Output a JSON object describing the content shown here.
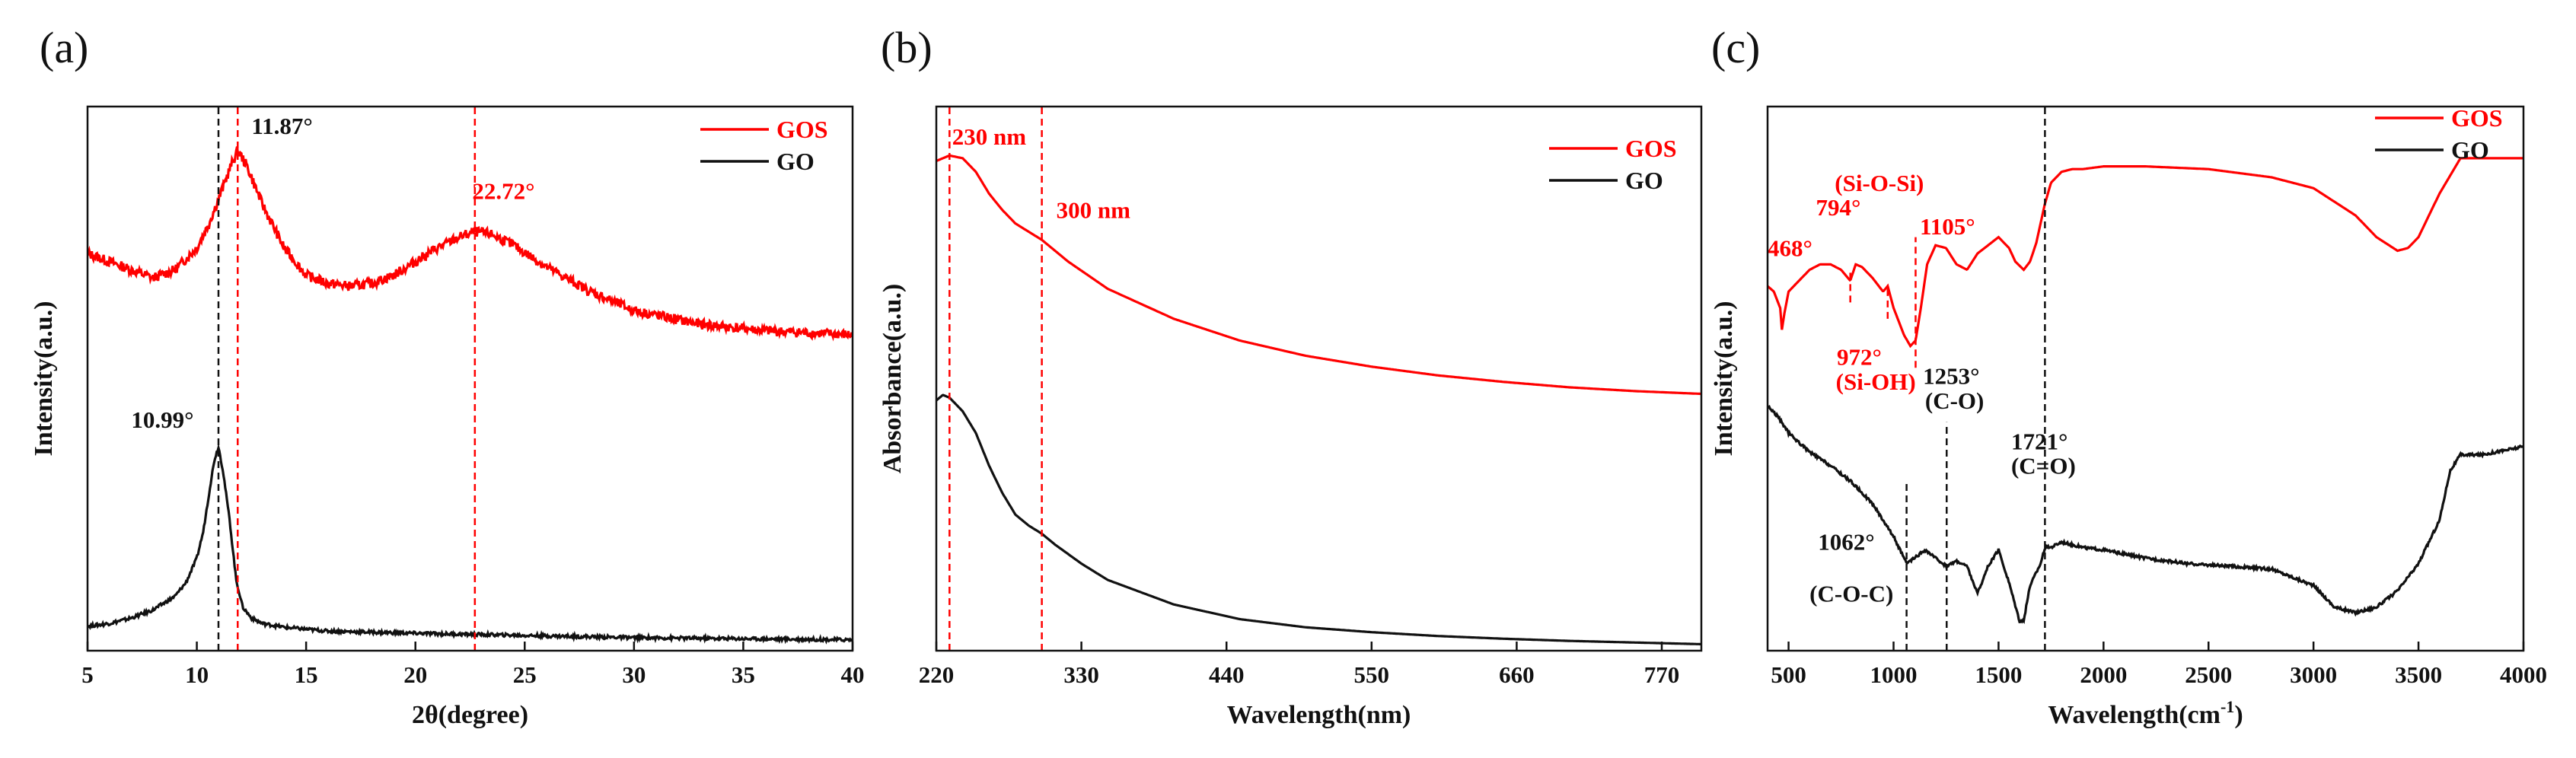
{
  "colors": {
    "red": "#ff0000",
    "black": "#111111"
  },
  "chart_data": [
    {
      "id": "a",
      "type": "line",
      "panel_label": "(a)",
      "xlabel": "2θ(degree)",
      "ylabel": "Intensity(a.u.)",
      "xlim": [
        5,
        40
      ],
      "ylim": [
        0,
        100
      ],
      "xticks": [
        5,
        10,
        15,
        20,
        25,
        30,
        35,
        40
      ],
      "legend": [
        {
          "name": "GOS",
          "color": "#ff0000"
        },
        {
          "name": "GO",
          "color": "#111111"
        }
      ],
      "series": [
        {
          "name": "GOS",
          "color": "#ff0000",
          "noise": 0.9,
          "x": [
            5,
            6,
            7,
            8,
            9,
            10,
            10.5,
            11,
            11.5,
            11.87,
            12.3,
            13,
            14,
            15,
            16,
            17,
            18,
            19,
            20,
            21,
            22,
            22.72,
            23.5,
            24.5,
            26,
            28,
            30,
            33,
            36,
            40
          ],
          "y": [
            73,
            71.5,
            70,
            68.5,
            70,
            74,
            78,
            83,
            88.5,
            92,
            89,
            82,
            74,
            69,
            67.5,
            67,
            67.5,
            69,
            71.5,
            74,
            76,
            77,
            76.5,
            74.5,
            70.5,
            66,
            62.5,
            60,
            58.8,
            58
          ]
        },
        {
          "name": "GO",
          "color": "#111111",
          "noise": 0.3,
          "x": [
            5,
            6,
            7,
            8,
            9,
            9.5,
            10,
            10.3,
            10.6,
            10.8,
            10.99,
            11.2,
            11.5,
            11.8,
            12.1,
            12.5,
            13,
            14,
            16,
            20,
            25,
            30,
            35,
            40
          ],
          "y": [
            4.5,
            5,
            6,
            7.5,
            10,
            12.5,
            17,
            22,
            30,
            35,
            37.5,
            33,
            24,
            13,
            8,
            6,
            5,
            4.3,
            3.6,
            3.2,
            2.8,
            2.4,
            2.2,
            2
          ]
        }
      ],
      "markers": [
        {
          "x": 10.99,
          "color": "#111111"
        },
        {
          "x": 11.87,
          "color": "#ff0000"
        },
        {
          "x": 22.72,
          "color": "#ff0000"
        }
      ],
      "annotations": [
        {
          "text": "11.87°",
          "x": 12.5,
          "y": 95,
          "color": "#111111"
        },
        {
          "text": "22.72°",
          "x": 22.6,
          "y": 83,
          "color": "#ff0000"
        },
        {
          "text": "10.99°",
          "x": 7.0,
          "y": 41,
          "color": "#111111"
        }
      ]
    },
    {
      "id": "b",
      "type": "line",
      "panel_label": "(b)",
      "xlabel": "Wavelength(nm)",
      "ylabel": "Absorbance(a.u.)",
      "xlim": [
        220,
        800
      ],
      "ylim": [
        0,
        100
      ],
      "xticks": [
        220,
        330,
        440,
        550,
        660,
        770
      ],
      "legend": [
        {
          "name": "GOS",
          "color": "#ff0000"
        },
        {
          "name": "GO",
          "color": "#111111"
        }
      ],
      "series": [
        {
          "name": "GOS",
          "color": "#ff0000",
          "noise": 0,
          "x": [
            220,
            230,
            240,
            250,
            260,
            270,
            280,
            290,
            300,
            320,
            350,
            400,
            450,
            500,
            550,
            600,
            650,
            700,
            750,
            800
          ],
          "y": [
            90,
            91,
            90.5,
            88,
            84,
            81,
            78.5,
            77,
            75.5,
            71.5,
            66.5,
            61,
            57,
            54.2,
            52.2,
            50.6,
            49.4,
            48.4,
            47.7,
            47.2
          ]
        },
        {
          "name": "GO",
          "color": "#111111",
          "noise": 0,
          "x": [
            220,
            225,
            230,
            240,
            250,
            260,
            270,
            280,
            290,
            300,
            310,
            330,
            350,
            400,
            450,
            500,
            550,
            600,
            650,
            700,
            750,
            800
          ],
          "y": [
            46,
            47,
            46.5,
            44,
            40,
            34,
            29,
            25,
            23,
            21.5,
            19.5,
            16,
            13,
            8.5,
            5.8,
            4.3,
            3.4,
            2.7,
            2.2,
            1.8,
            1.5,
            1.2
          ]
        }
      ],
      "markers": [
        {
          "x": 230,
          "color": "#ff0000"
        },
        {
          "x": 300,
          "color": "#ff0000"
        }
      ],
      "annotations": [
        {
          "text": "230 nm",
          "x": 232,
          "y": 93,
          "color": "#ff0000"
        },
        {
          "text": "300 nm",
          "x": 311,
          "y": 79.5,
          "color": "#ff0000"
        }
      ]
    },
    {
      "id": "c",
      "type": "line",
      "panel_label": "(c)",
      "xlabel": "Wavelength(cm",
      "xlabel_sup": "-1",
      "xlabel_tail": ")",
      "ylabel": "Intensity(a.u.)",
      "xlim": [
        400,
        4000
      ],
      "ylim": [
        0,
        100
      ],
      "xticks": [
        500,
        1000,
        1500,
        2000,
        2500,
        3000,
        3500,
        4000
      ],
      "legend": [
        {
          "name": "GOS",
          "color": "#ff0000"
        },
        {
          "name": "GO",
          "color": "#111111"
        }
      ],
      "series": [
        {
          "name": "GOS",
          "color": "#ff0000",
          "noise": 0,
          "x": [
            400,
            430,
            460,
            468,
            480,
            500,
            550,
            600,
            650,
            700,
            750,
            794,
            820,
            850,
            900,
            950,
            972,
            1000,
            1050,
            1080,
            1105,
            1130,
            1160,
            1200,
            1250,
            1300,
            1350,
            1400,
            1450,
            1500,
            1550,
            1580,
            1620,
            1650,
            1680,
            1720,
            1750,
            1800,
            1850,
            1900,
            2000,
            2200,
            2500,
            2800,
            3000,
            3200,
            3300,
            3400,
            3450,
            3500,
            3600,
            3700,
            3800,
            4000
          ],
          "y": [
            67,
            66,
            63,
            59,
            62,
            66,
            68,
            70,
            71,
            71,
            70,
            68,
            71,
            70.5,
            68.5,
            66,
            67,
            63,
            58,
            56,
            57,
            63,
            71,
            74.5,
            74,
            71,
            70,
            73,
            74.5,
            76,
            74,
            71.5,
            70,
            71.5,
            75,
            82,
            86,
            88,
            88.5,
            88.5,
            89,
            89,
            88.5,
            87,
            85,
            80,
            76,
            73.5,
            74,
            76,
            84,
            90.5,
            90.5,
            90.5
          ]
        },
        {
          "name": "GO",
          "color": "#111111",
          "noise": 0.25,
          "x": [
            400,
            450,
            500,
            600,
            700,
            800,
            900,
            1000,
            1062,
            1100,
            1150,
            1200,
            1253,
            1300,
            1350,
            1400,
            1450,
            1500,
            1550,
            1600,
            1620,
            1650,
            1700,
            1721,
            1750,
            1800,
            1900,
            2000,
            2200,
            2400,
            2600,
            2800,
            2900,
            3000,
            3100,
            3200,
            3300,
            3400,
            3500,
            3600,
            3650,
            3700,
            3800,
            4000
          ],
          "y": [
            45,
            43,
            40,
            36.5,
            34,
            31,
            27,
            21,
            16,
            17,
            18.5,
            17,
            15.5,
            16.5,
            15.5,
            10.5,
            15.5,
            18.5,
            12.5,
            5.5,
            5.5,
            12,
            16,
            19,
            19,
            20,
            19,
            18.5,
            17,
            16,
            15.5,
            15,
            13.5,
            12,
            8,
            7,
            8,
            11,
            16,
            24,
            33,
            36,
            36,
            37.5
          ]
        }
      ],
      "markers": [
        {
          "x": 1062,
          "color": "#111111",
          "y0": 0,
          "y1": 31
        },
        {
          "x": 1253,
          "color": "#111111",
          "y0": 0,
          "y1": 42
        },
        {
          "x": 1721,
          "color": "#111111",
          "y0": 0,
          "y1": 100
        },
        {
          "x": 794,
          "color": "#ff0000",
          "y0": 64,
          "y1": 70
        },
        {
          "x": 972,
          "color": "#ff0000",
          "y0": 61,
          "y1": 67
        },
        {
          "x": 1105,
          "color": "#ff0000",
          "y0": 52,
          "y1": 76
        }
      ],
      "annotations": [
        {
          "text": "(Si-O-Si)",
          "x": 720,
          "y": 84.5,
          "color": "#ff0000"
        },
        {
          "text": "794°",
          "x": 630,
          "y": 80,
          "color": "#ff0000"
        },
        {
          "text": "468°",
          "x": 400,
          "y": 72.5,
          "color": "#ff0000"
        },
        {
          "text": "1105°",
          "x": 1125,
          "y": 76.5,
          "color": "#ff0000"
        },
        {
          "text": "972°",
          "x": 730,
          "y": 52.5,
          "color": "#ff0000"
        },
        {
          "text": "(Si-OH)",
          "x": 725,
          "y": 48,
          "color": "#ff0000"
        },
        {
          "text": "1253°",
          "x": 1140,
          "y": 49,
          "color": "#111111"
        },
        {
          "text": "(C-O)",
          "x": 1150,
          "y": 44.5,
          "color": "#111111"
        },
        {
          "text": "1721°",
          "x": 1560,
          "y": 37,
          "color": "#111111"
        },
        {
          "text": "(C=O)",
          "x": 1560,
          "y": 32.5,
          "color": "#111111"
        },
        {
          "text": "1062°",
          "x": 640,
          "y": 18.5,
          "color": "#111111"
        },
        {
          "text": "(C-O-C)",
          "x": 600,
          "y": 9,
          "color": "#111111"
        }
      ]
    }
  ]
}
